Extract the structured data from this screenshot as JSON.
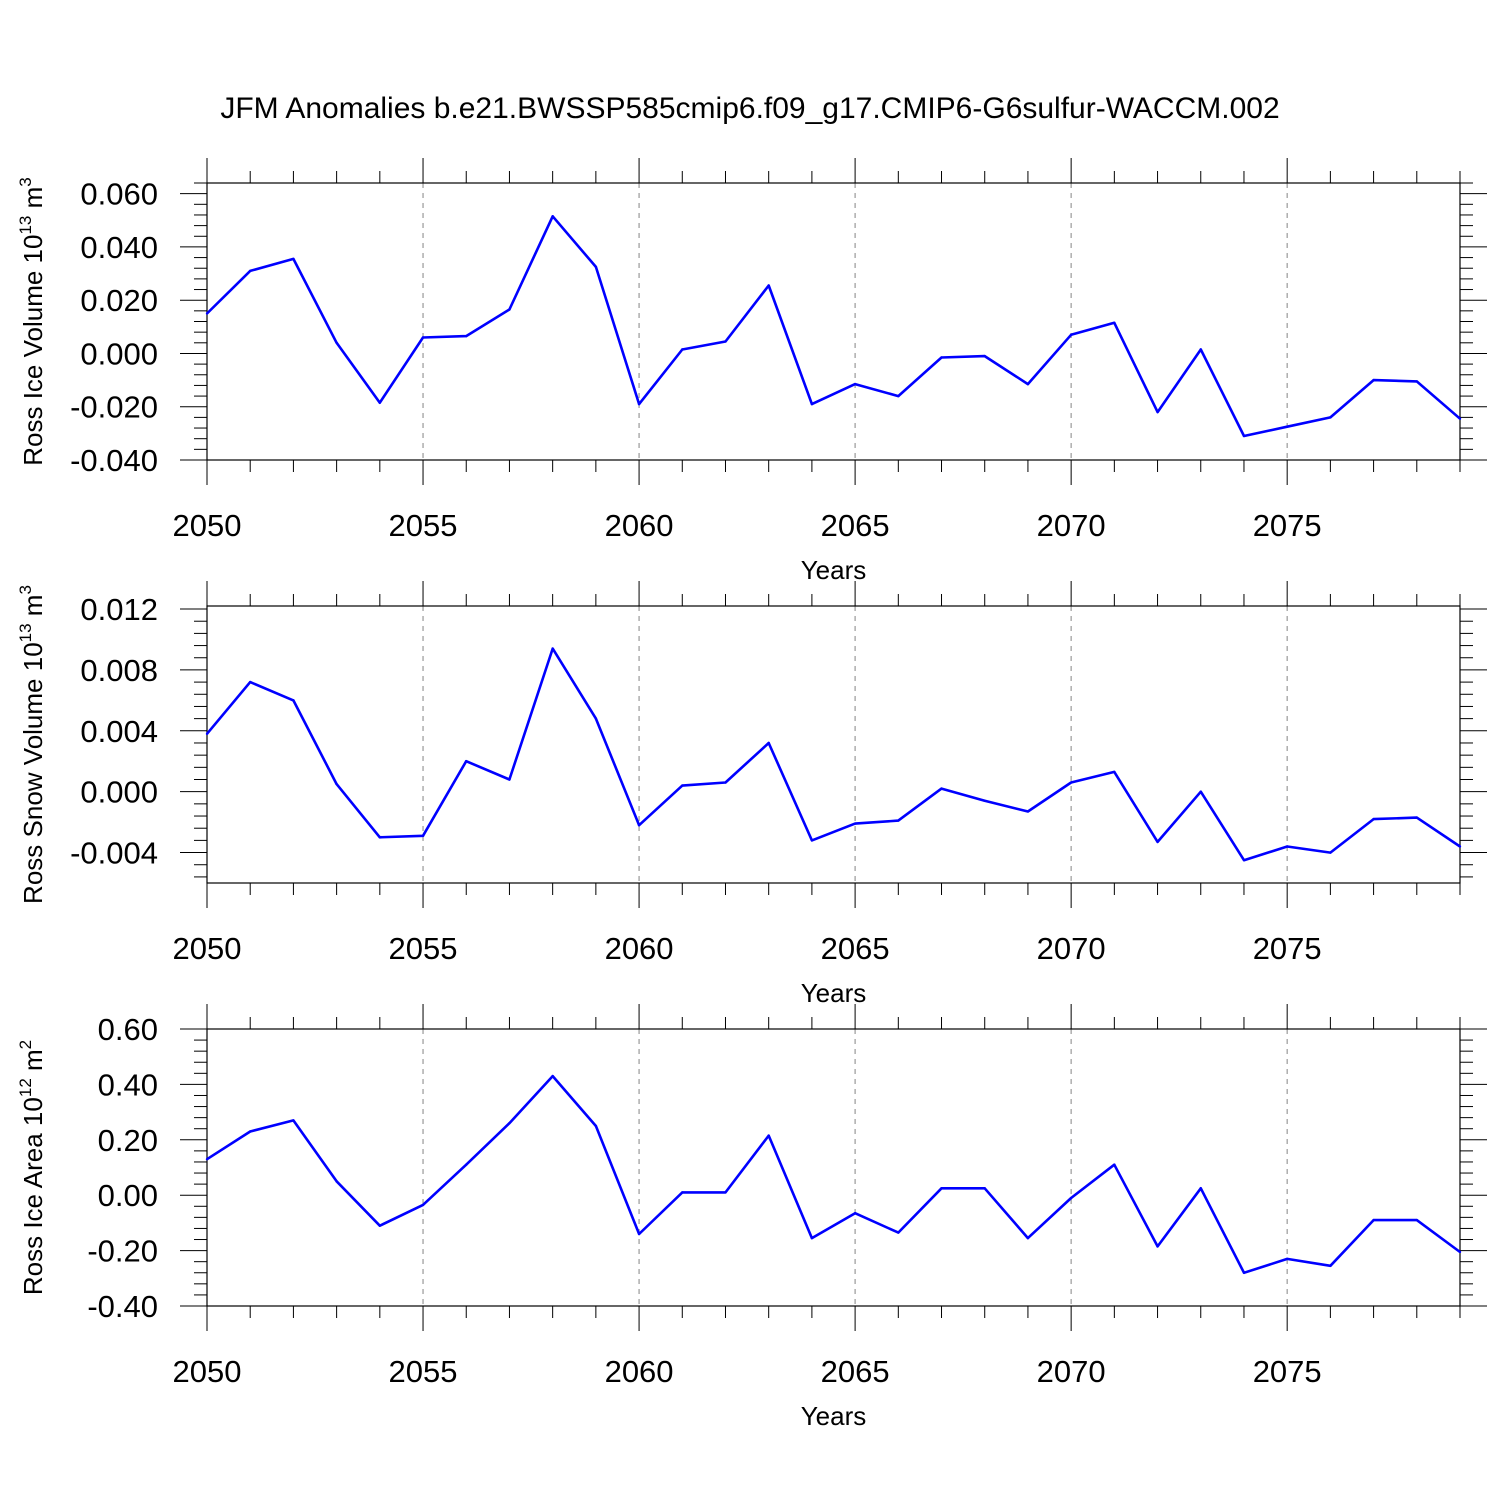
{
  "title": "JFM Anomalies b.e21.BWSSP585cmip6.f09_g17.CMIP6-G6sulfur-WACCM.002",
  "colors": {
    "line": "#0000ff",
    "axis": "#000000",
    "grid": "#999999"
  },
  "chart_data": [
    {
      "type": "line",
      "ylabel_main": "Ross Ice Volume 10",
      "ylabel_sup": "13",
      "ylabel_unit": " m",
      "ylabel_unit_sup": "3",
      "xlabel": "Years",
      "xlim": [
        2050,
        2079
      ],
      "ylim": [
        -0.04,
        0.064
      ],
      "yticks": [
        0.06,
        0.04,
        0.02,
        0.0,
        -0.02,
        -0.04
      ],
      "ytick_labels": [
        "0.060",
        "0.040",
        "0.020",
        "0.000",
        "-0.020",
        "-0.040"
      ],
      "xticks": [
        2050,
        2055,
        2060,
        2065,
        2070,
        2075
      ],
      "xtick_labels": [
        "2050",
        "2055",
        "2060",
        "2065",
        "2070",
        "2075"
      ],
      "x": [
        2050,
        2051,
        2052,
        2053,
        2054,
        2055,
        2056,
        2057,
        2058,
        2059,
        2060,
        2061,
        2062,
        2063,
        2064,
        2065,
        2066,
        2067,
        2068,
        2069,
        2070,
        2071,
        2072,
        2073,
        2074,
        2075,
        2076,
        2077,
        2078,
        2079
      ],
      "values": [
        0.015,
        0.031,
        0.0355,
        0.004,
        -0.0185,
        0.006,
        0.0065,
        0.0165,
        0.0515,
        0.0325,
        -0.019,
        0.0015,
        0.0045,
        0.0255,
        -0.019,
        -0.0115,
        -0.016,
        -0.0015,
        -0.001,
        -0.0115,
        0.007,
        0.0115,
        -0.022,
        0.0015,
        -0.031,
        -0.0275,
        -0.024,
        -0.01,
        -0.0105,
        -0.0245
      ]
    },
    {
      "type": "line",
      "ylabel_main": "Ross Snow Volume 10",
      "ylabel_sup": "13",
      "ylabel_unit": " m",
      "ylabel_unit_sup": "3",
      "xlabel": "Years",
      "xlim": [
        2050,
        2079
      ],
      "ylim": [
        -0.006,
        0.0122
      ],
      "yticks": [
        0.012,
        0.008,
        0.004,
        0.0,
        -0.004
      ],
      "ytick_labels": [
        "0.012",
        "0.008",
        "0.004",
        "0.000",
        "-0.004"
      ],
      "xticks": [
        2050,
        2055,
        2060,
        2065,
        2070,
        2075
      ],
      "xtick_labels": [
        "2050",
        "2055",
        "2060",
        "2065",
        "2070",
        "2075"
      ],
      "x": [
        2050,
        2051,
        2052,
        2053,
        2054,
        2055,
        2056,
        2057,
        2058,
        2059,
        2060,
        2061,
        2062,
        2063,
        2064,
        2065,
        2066,
        2067,
        2068,
        2069,
        2070,
        2071,
        2072,
        2073,
        2074,
        2075,
        2076,
        2077,
        2078,
        2079
      ],
      "values": [
        0.0038,
        0.0072,
        0.006,
        0.0005,
        -0.003,
        -0.0029,
        0.002,
        0.0008,
        0.0094,
        0.0048,
        -0.0022,
        0.0004,
        0.0006,
        0.0032,
        -0.0032,
        -0.0021,
        -0.0019,
        0.0002,
        -0.0006,
        -0.0013,
        0.0006,
        0.0013,
        -0.0033,
        0.0,
        -0.0045,
        -0.0036,
        -0.004,
        -0.0018,
        -0.0017,
        -0.0036
      ]
    },
    {
      "type": "line",
      "ylabel_main": "Ross Ice Area 10",
      "ylabel_sup": "12",
      "ylabel_unit": " m",
      "ylabel_unit_sup": "2",
      "xlabel": "Years",
      "xlim": [
        2050,
        2079
      ],
      "ylim": [
        -0.4,
        0.6
      ],
      "yticks": [
        0.6,
        0.4,
        0.2,
        0.0,
        -0.2,
        -0.4
      ],
      "ytick_labels": [
        "0.60",
        "0.40",
        "0.20",
        "0.00",
        "-0.20",
        "-0.40"
      ],
      "xticks": [
        2050,
        2055,
        2060,
        2065,
        2070,
        2075
      ],
      "xtick_labels": [
        "2050",
        "2055",
        "2060",
        "2065",
        "2070",
        "2075"
      ],
      "x": [
        2050,
        2051,
        2052,
        2053,
        2054,
        2055,
        2056,
        2057,
        2058,
        2059,
        2060,
        2061,
        2062,
        2063,
        2064,
        2065,
        2066,
        2067,
        2068,
        2069,
        2070,
        2071,
        2072,
        2073,
        2074,
        2075,
        2076,
        2077,
        2078,
        2079
      ],
      "values": [
        0.13,
        0.23,
        0.27,
        0.05,
        -0.11,
        -0.035,
        0.11,
        0.26,
        0.43,
        0.25,
        -0.14,
        0.01,
        0.01,
        0.215,
        -0.155,
        -0.065,
        -0.135,
        0.025,
        0.025,
        -0.155,
        -0.01,
        0.11,
        -0.185,
        0.025,
        -0.28,
        -0.23,
        -0.255,
        -0.09,
        -0.09,
        -0.205
      ]
    }
  ]
}
